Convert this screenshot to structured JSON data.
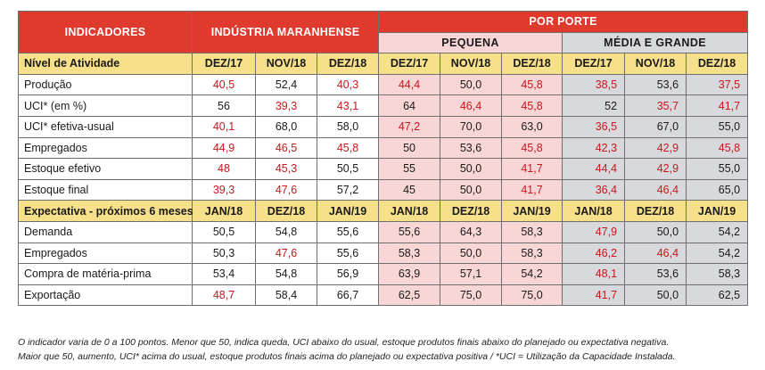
{
  "header": {
    "indicadores": "INDICADORES",
    "industria": "INDÚSTRIA MARANHENSE",
    "por_porte": "POR PORTE",
    "pequena": "PEQUENA",
    "media_grande": "MÉDIA E GRANDE"
  },
  "sections": [
    {
      "title": "Nível de Atividade",
      "periods": [
        "DEZ/17",
        "NOV/18",
        "DEZ/18",
        "DEZ/17",
        "NOV/18",
        "DEZ/18",
        "DEZ/17",
        "NOV/18",
        "DEZ/18"
      ],
      "rows": [
        {
          "label": "Produção",
          "values": [
            "40,5",
            "52,4",
            "40,3",
            "44,4",
            "50,0",
            "45,8",
            "38,5",
            "53,6",
            "37,5"
          ],
          "red": [
            true,
            false,
            true,
            true,
            false,
            true,
            true,
            false,
            true
          ]
        },
        {
          "label": "UCI* (em %)",
          "values": [
            "56",
            "39,3",
            "43,1",
            "64",
            "46,4",
            "45,8",
            "52",
            "35,7",
            "41,7"
          ],
          "red": [
            false,
            true,
            true,
            false,
            true,
            true,
            false,
            true,
            true
          ]
        },
        {
          "label": "UCI* efetiva-usual",
          "values": [
            "40,1",
            "68,0",
            "58,0",
            "47,2",
            "70,0",
            "63,0",
            "36,5",
            "67,0",
            "55,0"
          ],
          "red": [
            true,
            false,
            false,
            true,
            false,
            false,
            true,
            false,
            false
          ]
        },
        {
          "label": "Empregados",
          "values": [
            "44,9",
            "46,5",
            "45,8",
            "50",
            "53,6",
            "45,8",
            "42,3",
            "42,9",
            "45,8"
          ],
          "red": [
            true,
            true,
            true,
            false,
            false,
            true,
            true,
            true,
            true
          ]
        },
        {
          "label": "Estoque efetivo",
          "values": [
            "48",
            "45,3",
            "50,5",
            "55",
            "50,0",
            "41,7",
            "44,4",
            "42,9",
            "55,0"
          ],
          "red": [
            true,
            true,
            false,
            false,
            false,
            true,
            true,
            true,
            false
          ]
        },
        {
          "label": "Estoque final",
          "values": [
            "39,3",
            "47,6",
            "57,2",
            "45",
            "50,0",
            "41,7",
            "36,4",
            "46,4",
            "65,0"
          ],
          "red": [
            true,
            true,
            false,
            false,
            false,
            true,
            true,
            true,
            false
          ]
        }
      ]
    },
    {
      "title": "Expectativa - próximos 6 meses",
      "periods": [
        "JAN/18",
        "DEZ/18",
        "JAN/19",
        "JAN/18",
        "DEZ/18",
        "JAN/19",
        "JAN/18",
        "DEZ/18",
        "JAN/19"
      ],
      "rows": [
        {
          "label": "Demanda",
          "values": [
            "50,5",
            "54,8",
            "55,6",
            "55,6",
            "64,3",
            "58,3",
            "47,9",
            "50,0",
            "54,2"
          ],
          "red": [
            false,
            false,
            false,
            false,
            false,
            false,
            true,
            false,
            false
          ]
        },
        {
          "label": "Empregados",
          "values": [
            "50,3",
            "47,6",
            "55,6",
            "58,3",
            "50,0",
            "58,3",
            "46,2",
            "46,4",
            "54,2"
          ],
          "red": [
            false,
            true,
            false,
            false,
            false,
            false,
            true,
            true,
            false
          ]
        },
        {
          "label": "Compra de matéria-prima",
          "values": [
            "53,4",
            "54,8",
            "56,9",
            "63,9",
            "57,1",
            "54,2",
            "48,1",
            "53,6",
            "58,3"
          ],
          "red": [
            false,
            false,
            false,
            false,
            false,
            false,
            true,
            false,
            false
          ]
        },
        {
          "label": "Exportação",
          "values": [
            "48,7",
            "58,4",
            "66,7",
            "62,5",
            "75,0",
            "75,0",
            "41,7",
            "50,0",
            "62,5"
          ],
          "red": [
            true,
            false,
            false,
            false,
            false,
            false,
            true,
            false,
            false
          ]
        }
      ]
    }
  ],
  "footnote": {
    "line1": "O indicador varia de 0 a 100 pontos. Menor que 50, indica queda, UCI abaixo do usual, estoque produtos finais abaixo do planejado ou expectativa negativa.",
    "line2": "Maior que 50, aumento, UCI* acima do usual, estoque produtos finais acima do planejado ou expectativa positiva / *UCI = Utilização da Capacidade Instalada."
  },
  "colors": {
    "header_red": "#e03a2e",
    "section_yellow": "#f7e08a",
    "pequena_pink": "#f8d6d6",
    "media_grande_gray": "#d7d9dc",
    "negative_red": "#c8161d"
  }
}
